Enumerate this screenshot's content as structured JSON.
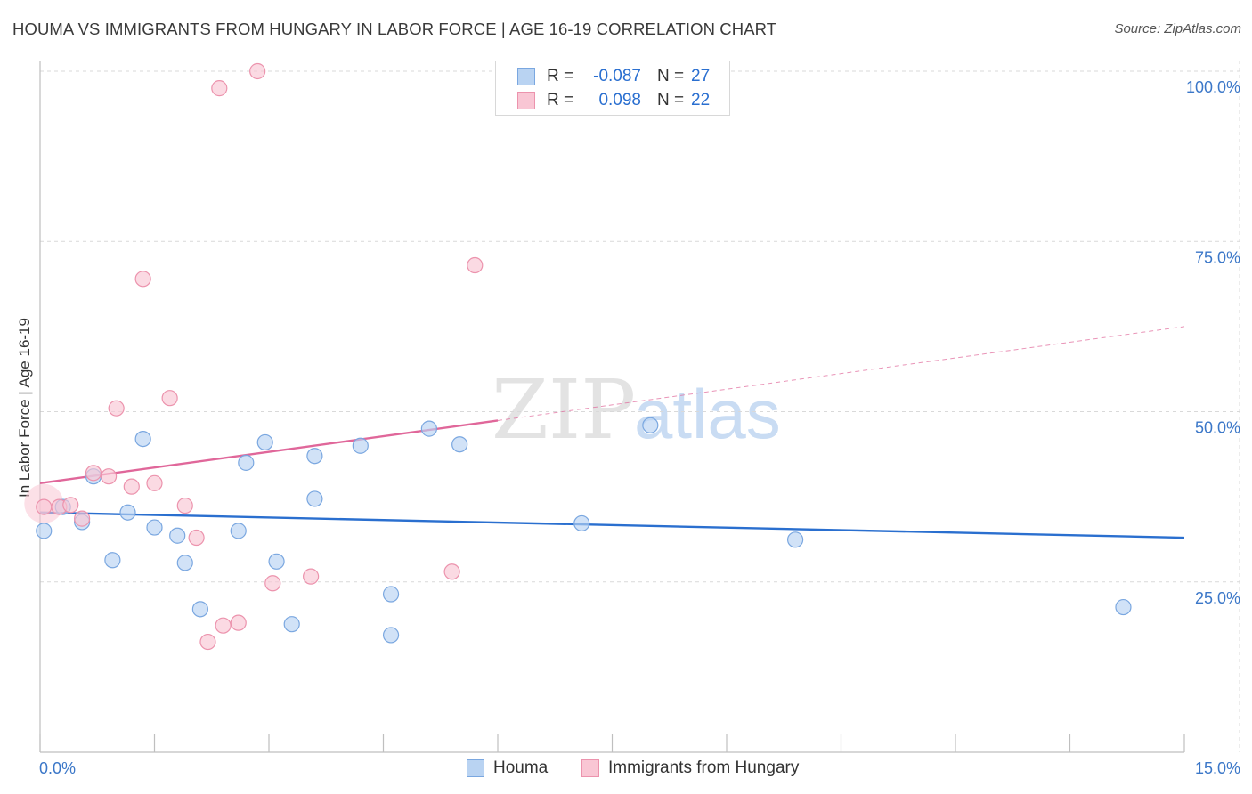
{
  "title": "HOUMA VS IMMIGRANTS FROM HUNGARY IN LABOR FORCE | AGE 16-19 CORRELATION CHART",
  "source": "Source: ZipAtlas.com",
  "watermark": {
    "zip": "ZIP",
    "atlas": "atlas"
  },
  "legend": {
    "rows": [
      {
        "r_label": "R =",
        "r_value": "-0.087",
        "n_label": "N =",
        "n_value": "27"
      },
      {
        "r_label": "R =",
        "r_value": "0.098",
        "n_label": "N =",
        "n_value": "22"
      }
    ]
  },
  "colors": {
    "houma_fill": "#b9d3f2",
    "houma_stroke": "#7aa7e0",
    "houma_line": "#2a6fcf",
    "hungary_fill": "#f9c6d4",
    "hungary_stroke": "#ec93ad",
    "hungary_line": "#e0679a",
    "grid": "#d9d9d9",
    "tick_label": "#3b77c8"
  },
  "chart_data": {
    "type": "scatter",
    "title": "HOUMA VS IMMIGRANTS FROM HUNGARY IN LABOR FORCE | AGE 16-19 CORRELATION CHART",
    "xlabel": "",
    "ylabel": "In Labor Force | Age 16-19",
    "xlim": [
      0,
      15
    ],
    "ylim": [
      0,
      100
    ],
    "x_tick_labels": [
      "0.0%",
      "15.0%"
    ],
    "y_ticks": [
      25,
      50,
      75,
      100
    ],
    "y_tick_labels": [
      "25.0%",
      "50.0%",
      "75.0%",
      "100.0%"
    ],
    "legend_position": "top-center",
    "series": [
      {
        "name": "Houma",
        "r": -0.087,
        "n": 27,
        "trend": {
          "x0": 0,
          "y0": 35.2,
          "x1": 15,
          "y1": 31.5,
          "solid_to": 15
        },
        "points": [
          [
            0.05,
            32.5
          ],
          [
            0.3,
            36.0
          ],
          [
            0.55,
            33.8
          ],
          [
            0.7,
            40.5
          ],
          [
            0.95,
            28.2
          ],
          [
            1.15,
            35.2
          ],
          [
            1.35,
            46.0
          ],
          [
            1.5,
            33.0
          ],
          [
            1.8,
            31.8
          ],
          [
            1.9,
            27.8
          ],
          [
            2.1,
            21.0
          ],
          [
            2.6,
            32.5
          ],
          [
            2.7,
            42.5
          ],
          [
            2.95,
            45.5
          ],
          [
            3.1,
            28.0
          ],
          [
            3.3,
            18.8
          ],
          [
            3.6,
            43.5
          ],
          [
            3.6,
            37.2
          ],
          [
            4.2,
            45.0
          ],
          [
            4.6,
            17.2
          ],
          [
            4.6,
            23.2
          ],
          [
            5.1,
            47.5
          ],
          [
            5.5,
            45.2
          ],
          [
            7.1,
            33.6
          ],
          [
            8.0,
            48.0
          ],
          [
            9.9,
            31.2
          ],
          [
            14.2,
            21.3
          ]
        ]
      },
      {
        "name": "Immigrants from Hungary",
        "r": 0.098,
        "n": 22,
        "trend": {
          "x0": 0,
          "y0": 39.5,
          "x1": 15,
          "y1": 62.5,
          "solid_to": 6.0
        },
        "points": [
          [
            0.05,
            36.0
          ],
          [
            0.25,
            36.0
          ],
          [
            0.4,
            36.3
          ],
          [
            0.55,
            34.3
          ],
          [
            0.7,
            41.0
          ],
          [
            0.9,
            40.5
          ],
          [
            1.0,
            50.5
          ],
          [
            1.2,
            39.0
          ],
          [
            1.35,
            69.5
          ],
          [
            1.5,
            39.5
          ],
          [
            1.7,
            52.0
          ],
          [
            1.9,
            36.2
          ],
          [
            2.05,
            31.5
          ],
          [
            2.2,
            16.2
          ],
          [
            2.35,
            97.5
          ],
          [
            2.4,
            18.6
          ],
          [
            2.6,
            19.0
          ],
          [
            2.85,
            100.0
          ],
          [
            3.05,
            24.8
          ],
          [
            3.55,
            25.8
          ],
          [
            5.4,
            26.5
          ],
          [
            5.7,
            71.5
          ]
        ]
      }
    ]
  },
  "bottom_legend": [
    {
      "label": "Houma"
    },
    {
      "label": "Immigrants from Hungary"
    }
  ]
}
